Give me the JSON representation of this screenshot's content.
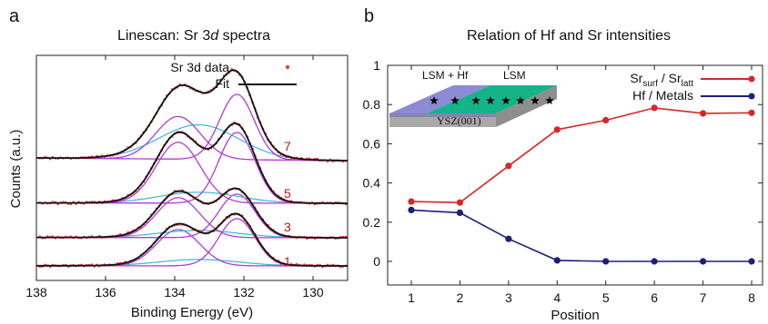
{
  "panel_a": {
    "letter": "a",
    "title_prefix": "Linescan: Sr 3",
    "title_italic": "d",
    "title_suffix": " spectra",
    "xlabel": "Binding Energy (eV)",
    "ylabel": "Counts (a.u.)",
    "legend": {
      "data_label": "Sr 3d data",
      "fit_label": "Fit"
    }
  },
  "panel_b": {
    "letter": "b",
    "title": "Relation of Hf and Sr intensities",
    "xlabel": "Position",
    "legend": {
      "sr_main": "Sr",
      "sr_sub1": "surf",
      "sr_sep": " / Sr",
      "sr_sub2": "latt",
      "hf_label": "Hf / Metals"
    },
    "inset": {
      "left_label": "LSM + Hf",
      "right_label": "LSM",
      "substrate": "YSZ(001)"
    }
  },
  "colors": {
    "sr_series": "#d62728",
    "hf_series": "#1b1f7a",
    "data_dots": "#e8413c",
    "fit": "#111111",
    "component_magenta": "#b43ad6",
    "component_cyan": "#36b7d9",
    "inset_purple": "#8d8bd6",
    "inset_green": "#14b38a",
    "inset_gray": "#a9a9a9"
  },
  "chart_data": [
    {
      "type": "line",
      "title": "Linescan: Sr 3d spectra",
      "xlabel": "Binding Energy (eV)",
      "ylabel": "Counts (a.u.)",
      "xlim": [
        138,
        129
      ],
      "x_reversed": true,
      "xticks": [
        138,
        136,
        134,
        132,
        130
      ],
      "trace_labels": [
        "1",
        "3",
        "5",
        "7"
      ],
      "peaks_eV": [
        133.9,
        132.2
      ],
      "series": [
        {
          "name": "Sr 3d data",
          "style": "points"
        },
        {
          "name": "Fit",
          "style": "line"
        }
      ],
      "legend_position": "top-right"
    },
    {
      "type": "line",
      "title": "Relation of Hf and Sr intensities",
      "xlabel": "Position",
      "ylabel": "",
      "x": [
        1,
        2,
        3,
        4,
        5,
        6,
        7,
        8
      ],
      "ylim": [
        0,
        1
      ],
      "yticks": [
        0,
        0.2,
        0.4,
        0.6,
        0.8,
        1
      ],
      "yticklabels": [
        "0",
        "0.2",
        "0.4",
        "0.6",
        "0.8",
        "1"
      ],
      "series": [
        {
          "name": "Sr_surf / Sr_latt",
          "values": [
            0.305,
            0.3,
            0.487,
            0.672,
            0.72,
            0.783,
            0.755,
            0.758
          ]
        },
        {
          "name": "Hf / Metals",
          "values": [
            0.262,
            0.248,
            0.115,
            0.005,
            0.0,
            0.0,
            0.0,
            0.0
          ]
        }
      ],
      "legend_position": "top-right"
    }
  ]
}
